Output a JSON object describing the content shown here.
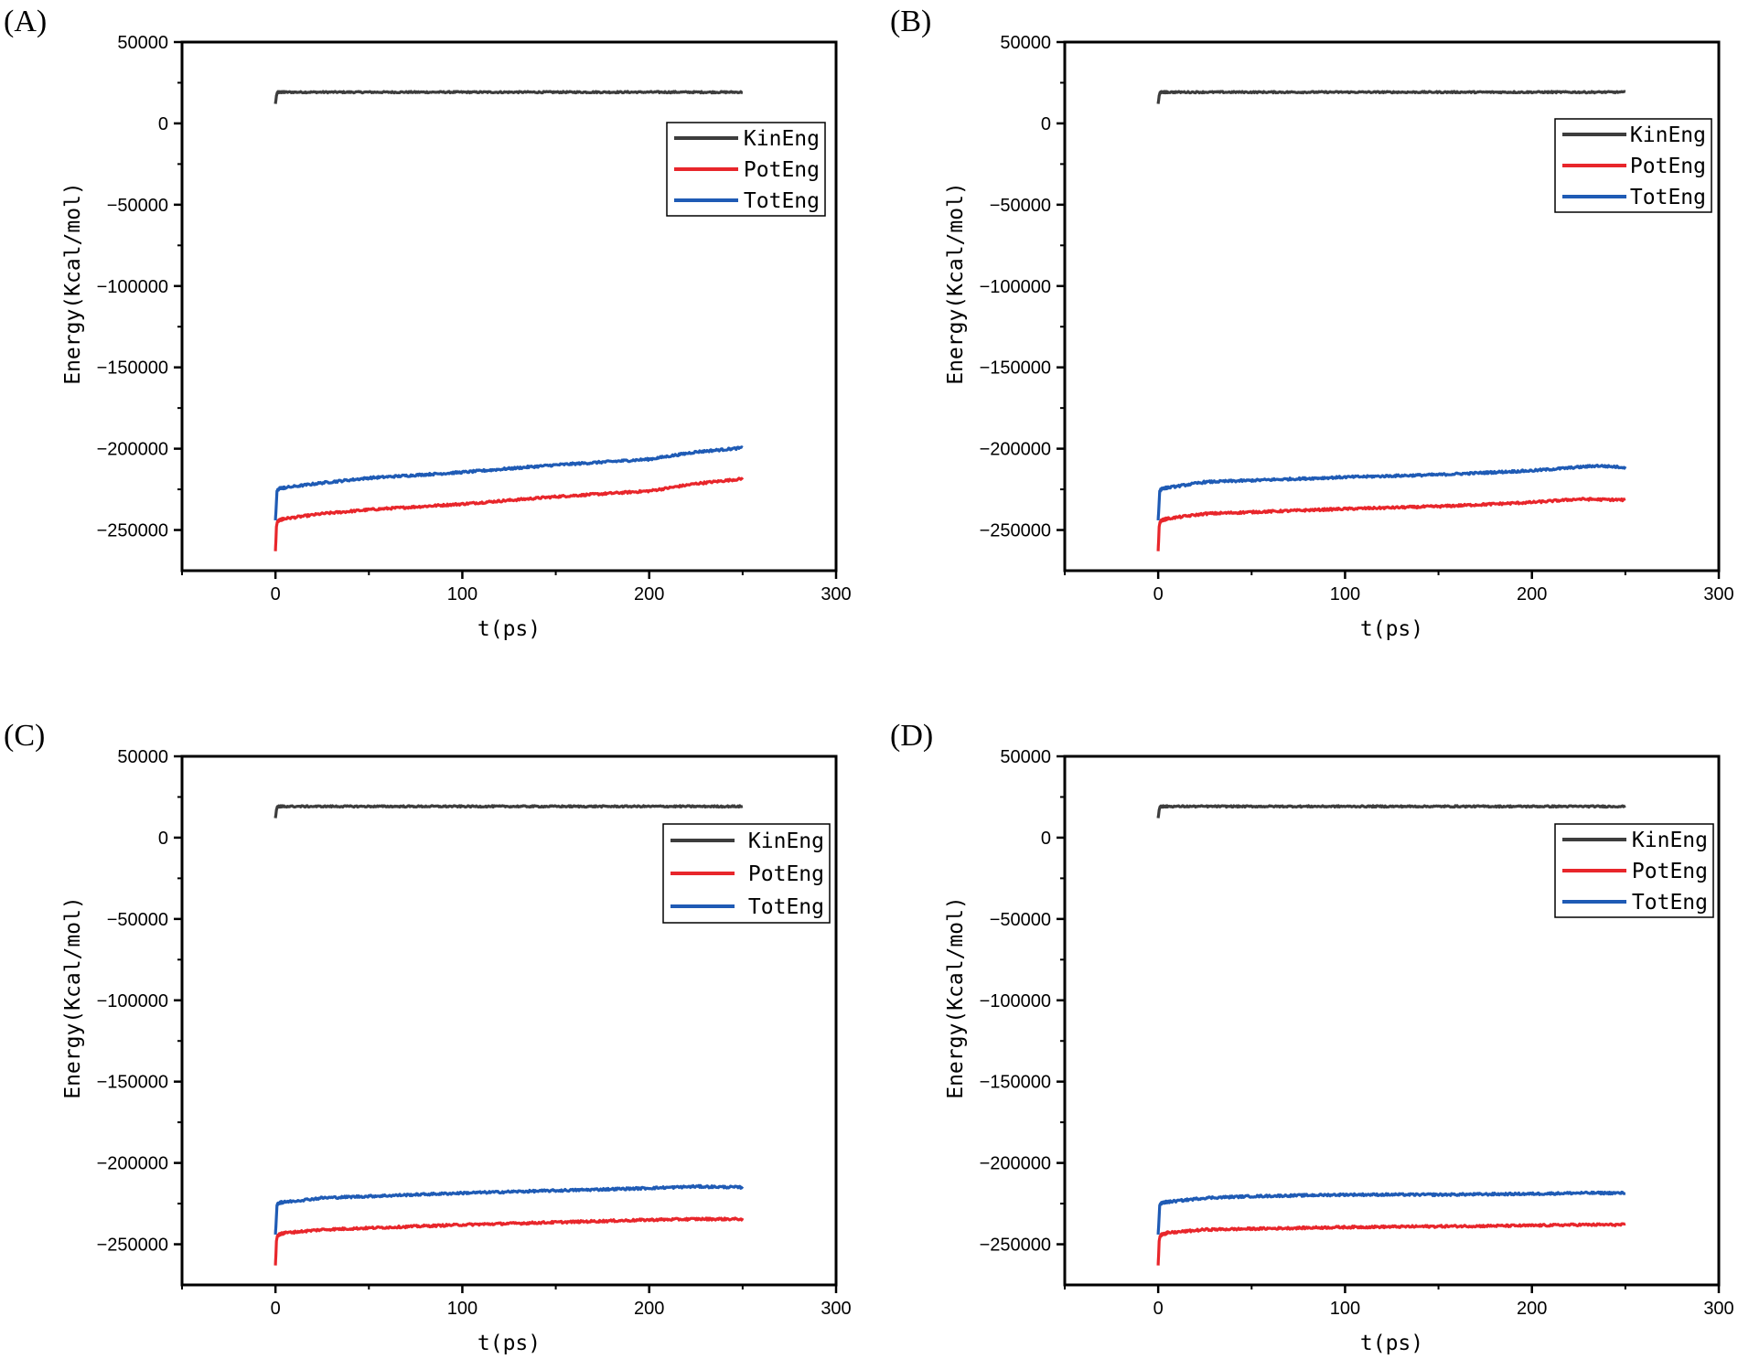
{
  "chart_data": [
    {
      "panel": "(A)",
      "type": "line",
      "xlabel": "t(ps)",
      "ylabel": "Energy(Kcal/mol)",
      "xlim": [
        -50,
        300
      ],
      "ylim": [
        -275000,
        50000
      ],
      "xticks": [
        0,
        100,
        200,
        300
      ],
      "yticks": [
        50000,
        0,
        -50000,
        -100000,
        -150000,
        -200000,
        -250000
      ],
      "xtick_labels": [
        "0",
        "100",
        "200",
        "300"
      ],
      "ytick_labels": [
        "50000",
        "0",
        "−50000",
        "−100000",
        "−150000",
        "−200000",
        "−250000"
      ],
      "legend": [
        "KinEng",
        "PotEng",
        "TotEng"
      ],
      "legend_position": "upper-right",
      "series": [
        {
          "name": "KinEng",
          "color": "#3d3d3d",
          "x": [
            0,
            0.5,
            1,
            2,
            5,
            50,
            100,
            150,
            200,
            250
          ],
          "values": [
            12000,
            17000,
            19000,
            19200,
            19200,
            19200,
            19200,
            19200,
            19200,
            19200
          ]
        },
        {
          "name": "PotEng",
          "color": "#e8262b",
          "x": [
            0,
            0.5,
            1,
            2,
            5,
            25,
            50,
            100,
            150,
            200,
            225,
            250
          ],
          "values": [
            -263000,
            -248000,
            -245000,
            -244000,
            -243000,
            -240000,
            -237500,
            -234000,
            -229500,
            -226000,
            -221500,
            -218500
          ]
        },
        {
          "name": "TotEng",
          "color": "#1f5bb5",
          "x": [
            0,
            0.4,
            0.8,
            2,
            5,
            25,
            50,
            100,
            150,
            200,
            225,
            250
          ],
          "values": [
            -244000,
            -235000,
            -226000,
            -224500,
            -224000,
            -221000,
            -218000,
            -214500,
            -210000,
            -206500,
            -202000,
            -199500
          ]
        }
      ]
    },
    {
      "panel": "(B)",
      "type": "line",
      "xlabel": "t(ps)",
      "ylabel": "Energy(Kcal/mol)",
      "xlim": [
        -50,
        300
      ],
      "ylim": [
        -275000,
        50000
      ],
      "xticks": [
        0,
        100,
        200,
        300
      ],
      "yticks": [
        50000,
        0,
        -50000,
        -100000,
        -150000,
        -200000,
        -250000
      ],
      "xtick_labels": [
        "0",
        "100",
        "200",
        "300"
      ],
      "ytick_labels": [
        "50000",
        "0",
        "−50000",
        "−100000",
        "−150000",
        "−200000",
        "−250000"
      ],
      "legend": [
        "KinEng",
        "PotEng",
        "TotEng"
      ],
      "legend_position": "upper-right",
      "series": [
        {
          "name": "KinEng",
          "color": "#3d3d3d",
          "x": [
            0,
            0.5,
            1,
            2,
            5,
            50,
            100,
            150,
            200,
            250
          ],
          "values": [
            12000,
            17000,
            19000,
            19200,
            19200,
            19200,
            19200,
            19200,
            19200,
            19200
          ]
        },
        {
          "name": "PotEng",
          "color": "#e8262b",
          "x": [
            0,
            0.5,
            1,
            2,
            5,
            25,
            50,
            100,
            150,
            200,
            225,
            250
          ],
          "values": [
            -263000,
            -248000,
            -245000,
            -244000,
            -243000,
            -240000,
            -239000,
            -237000,
            -235500,
            -233000,
            -231000,
            -231500
          ]
        },
        {
          "name": "TotEng",
          "color": "#1f5bb5",
          "x": [
            0,
            0.4,
            0.8,
            2,
            5,
            25,
            50,
            100,
            150,
            200,
            235,
            250
          ],
          "values": [
            -244000,
            -235000,
            -226000,
            -224500,
            -224000,
            -220500,
            -219500,
            -217500,
            -216000,
            -213500,
            -210500,
            -211500
          ]
        }
      ]
    },
    {
      "panel": "(C)",
      "type": "line",
      "xlabel": "t(ps)",
      "ylabel": "Energy(Kcal/mol)",
      "xlim": [
        -50,
        300
      ],
      "ylim": [
        -275000,
        50000
      ],
      "xticks": [
        0,
        100,
        200,
        300
      ],
      "yticks": [
        50000,
        0,
        -50000,
        -100000,
        -150000,
        -200000,
        -250000
      ],
      "xtick_labels": [
        "0",
        "100",
        "200",
        "300"
      ],
      "ytick_labels": [
        "50000",
        "0",
        "−50000",
        "−100000",
        "−150000",
        "−200000",
        "−250000"
      ],
      "legend": [
        "KinEng",
        "PotEng",
        "TotEng"
      ],
      "legend_position": "upper-right",
      "series": [
        {
          "name": "KinEng",
          "color": "#3d3d3d",
          "x": [
            0,
            0.5,
            1,
            2,
            5,
            50,
            100,
            150,
            200,
            250
          ],
          "values": [
            12000,
            17000,
            19000,
            19200,
            19200,
            19200,
            19200,
            19200,
            19200,
            19200
          ]
        },
        {
          "name": "PotEng",
          "color": "#e8262b",
          "x": [
            0,
            0.5,
            1,
            2,
            5,
            25,
            50,
            100,
            150,
            200,
            225,
            250
          ],
          "values": [
            -263000,
            -248000,
            -245000,
            -244000,
            -243000,
            -241000,
            -240000,
            -238000,
            -236500,
            -235000,
            -234500,
            -234500
          ]
        },
        {
          "name": "TotEng",
          "color": "#1f5bb5",
          "x": [
            0,
            0.4,
            0.8,
            2,
            5,
            25,
            50,
            100,
            150,
            200,
            225,
            250
          ],
          "values": [
            -244000,
            -235000,
            -226000,
            -224500,
            -224000,
            -221500,
            -220500,
            -218500,
            -217000,
            -215500,
            -214500,
            -215000
          ]
        }
      ]
    },
    {
      "panel": "(D)",
      "type": "line",
      "xlabel": "t(ps)",
      "ylabel": "Energy(Kcal/mol)",
      "xlim": [
        -50,
        300
      ],
      "ylim": [
        -275000,
        50000
      ],
      "xticks": [
        0,
        100,
        200,
        300
      ],
      "yticks": [
        50000,
        0,
        -50000,
        -100000,
        -150000,
        -200000,
        -250000
      ],
      "xtick_labels": [
        "0",
        "100",
        "200",
        "300"
      ],
      "ytick_labels": [
        "50000",
        "0",
        "−50000",
        "−100000",
        "−150000",
        "−200000",
        "−250000"
      ],
      "legend": [
        "KinEng",
        "PotEng",
        "TotEng"
      ],
      "legend_position": "upper-right",
      "series": [
        {
          "name": "KinEng",
          "color": "#3d3d3d",
          "x": [
            0,
            0.5,
            1,
            2,
            5,
            50,
            100,
            150,
            200,
            250
          ],
          "values": [
            12000,
            17000,
            19000,
            19200,
            19200,
            19200,
            19200,
            19200,
            19200,
            19200
          ]
        },
        {
          "name": "PotEng",
          "color": "#e8262b",
          "x": [
            0,
            0.5,
            1,
            2,
            5,
            25,
            50,
            100,
            150,
            200,
            225,
            250
          ],
          "values": [
            -263000,
            -248000,
            -245000,
            -244000,
            -243000,
            -241000,
            -240500,
            -239500,
            -239000,
            -238500,
            -238000,
            -238000
          ]
        },
        {
          "name": "TotEng",
          "color": "#1f5bb5",
          "x": [
            0,
            0.4,
            0.8,
            2,
            5,
            25,
            50,
            100,
            150,
            200,
            225,
            250
          ],
          "values": [
            -244000,
            -235000,
            -226000,
            -224500,
            -224000,
            -221500,
            -220500,
            -219500,
            -219500,
            -219000,
            -218500,
            -218500
          ]
        }
      ]
    }
  ]
}
